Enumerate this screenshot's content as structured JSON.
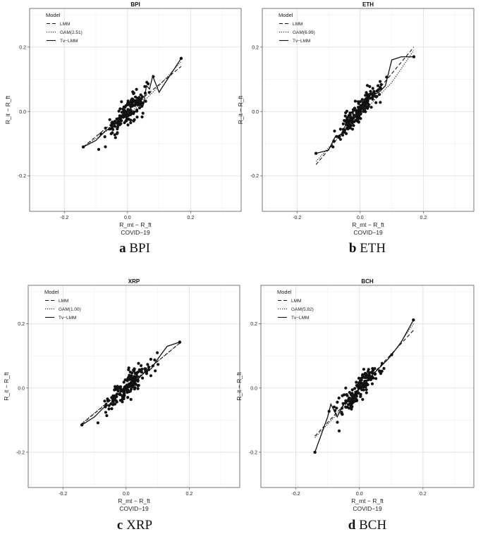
{
  "chart_data": [
    {
      "type": "scatter",
      "title": "BPI",
      "xlabel": "R_mt − R_ft",
      "ylabel": "R_it − R_ft",
      "sublabel": "COVID−19",
      "xlim": [
        -0.31,
        0.36
      ],
      "ylim": [
        -0.31,
        0.32
      ],
      "x_ticks": [
        "-0.2",
        "0.0",
        "0.2"
      ],
      "y_ticks": [
        "-0.2",
        "0.0",
        "0.2"
      ],
      "grid": true,
      "legend_placement": "top-left",
      "legend": {
        "title": "Model",
        "entries": [
          "LMM",
          "GAM(2.51)",
          "Tv−LMM"
        ]
      },
      "lmm_line": {
        "x": [
          -0.14,
          0.17
        ],
        "y": [
          -0.11,
          0.14
        ]
      },
      "gam_line": {
        "x": [
          -0.14,
          -0.05,
          0.0,
          0.05,
          0.1,
          0.17
        ],
        "y": [
          -0.11,
          -0.05,
          -0.01,
          0.03,
          0.08,
          0.155
        ]
      },
      "tv_line": {
        "x": [
          -0.14,
          -0.1,
          -0.07,
          -0.05,
          -0.03,
          -0.01,
          0.0,
          0.02,
          0.03,
          0.05,
          0.06,
          0.07,
          0.08,
          0.1,
          0.12,
          0.17
        ],
        "y": [
          -0.11,
          -0.09,
          -0.06,
          -0.05,
          -0.03,
          -0.01,
          0.0,
          0.02,
          0.04,
          0.02,
          0.08,
          0.07,
          0.11,
          0.06,
          0.09,
          0.165
        ]
      },
      "caption_letter": "a",
      "caption_text": "BPI"
    },
    {
      "type": "scatter",
      "title": "ETH",
      "xlabel": "R_mt − R_ft",
      "ylabel": "R_it − R_ft",
      "sublabel": "COVID−19",
      "xlim": [
        -0.31,
        0.36
      ],
      "ylim": [
        -0.31,
        0.32
      ],
      "x_ticks": [
        "-0.2",
        "0.0",
        "0.2"
      ],
      "y_ticks": [
        "-0.2",
        "0.0",
        "0.2"
      ],
      "grid": true,
      "legend_placement": "top-left",
      "legend": {
        "title": "Model",
        "entries": [
          "LMM",
          "GAM(6.99)",
          "Tv−LMM"
        ]
      },
      "lmm_line": {
        "x": [
          -0.14,
          0.17
        ],
        "y": [
          -0.165,
          0.2
        ]
      },
      "gam_line": {
        "x": [
          -0.14,
          -0.05,
          0.0,
          0.05,
          0.1,
          0.17
        ],
        "y": [
          -0.155,
          -0.06,
          -0.01,
          0.04,
          0.09,
          0.19
        ]
      },
      "tv_line": {
        "x": [
          -0.14,
          -0.1,
          -0.08,
          -0.06,
          -0.04,
          -0.02,
          0.0,
          0.02,
          0.04,
          0.06,
          0.08,
          0.1,
          0.13,
          0.17
        ],
        "y": [
          -0.13,
          -0.12,
          -0.08,
          -0.07,
          -0.03,
          -0.02,
          0.0,
          0.03,
          0.05,
          0.06,
          0.08,
          0.16,
          0.17,
          0.17
        ]
      },
      "caption_letter": "b",
      "caption_text": "ETH"
    },
    {
      "type": "scatter",
      "title": "XRP",
      "xlabel": "R_mt − R_ft",
      "ylabel": "R_it − R_ft",
      "sublabel": "COVID−19",
      "xlim": [
        -0.31,
        0.36
      ],
      "ylim": [
        -0.31,
        0.32
      ],
      "x_ticks": [
        "-0.2",
        "0.0",
        "0.2"
      ],
      "y_ticks": [
        "-0.2",
        "0.0",
        "0.2"
      ],
      "grid": true,
      "legend_placement": "top-left",
      "legend": {
        "title": "Model",
        "entries": [
          "LMM",
          "GAM(1.00)",
          "Tv−LMM"
        ]
      },
      "lmm_line": {
        "x": [
          -0.14,
          0.17
        ],
        "y": [
          -0.112,
          0.14
        ]
      },
      "gam_line": {
        "x": [
          -0.14,
          0.17
        ],
        "y": [
          -0.11,
          0.14
        ]
      },
      "tv_line": {
        "x": [
          -0.14,
          -0.1,
          -0.07,
          -0.05,
          -0.03,
          -0.01,
          0.0,
          0.02,
          0.04,
          0.06,
          0.08,
          0.1,
          0.13,
          0.17
        ],
        "y": [
          -0.115,
          -0.09,
          -0.06,
          -0.05,
          -0.02,
          -0.01,
          0.0,
          0.02,
          0.03,
          0.05,
          0.06,
          0.09,
          0.13,
          0.143
        ]
      },
      "caption_letter": "c",
      "caption_text": "XRP"
    },
    {
      "type": "scatter",
      "title": "BCH",
      "xlabel": "R_mt − R_ft",
      "ylabel": "R_it − R_ft",
      "sublabel": "COVID−19",
      "xlim": [
        -0.31,
        0.36
      ],
      "ylim": [
        -0.31,
        0.32
      ],
      "x_ticks": [
        "-0.2",
        "0.0",
        "0.2"
      ],
      "y_ticks": [
        "-0.2",
        "0.0",
        "0.2"
      ],
      "grid": true,
      "legend_placement": "top-left",
      "legend": {
        "title": "Model",
        "entries": [
          "LMM",
          "GAM(5.82)",
          "Tv−LMM"
        ]
      },
      "lmm_line": {
        "x": [
          -0.14,
          0.17
        ],
        "y": [
          -0.15,
          0.18
        ]
      },
      "gam_line": {
        "x": [
          -0.14,
          -0.05,
          0.0,
          0.05,
          0.1,
          0.17
        ],
        "y": [
          -0.155,
          -0.06,
          -0.005,
          0.05,
          0.1,
          0.2
        ]
      },
      "tv_line": {
        "x": [
          -0.14,
          -0.1,
          -0.09,
          -0.07,
          -0.05,
          -0.03,
          -0.01,
          0.0,
          0.02,
          0.04,
          0.06,
          0.09,
          0.13,
          0.17
        ],
        "y": [
          -0.2,
          -0.09,
          -0.05,
          -0.09,
          -0.05,
          -0.04,
          -0.02,
          0.0,
          0.02,
          0.04,
          0.06,
          0.09,
          0.14,
          0.212
        ]
      },
      "caption_letter": "d",
      "caption_text": "BCH"
    }
  ]
}
